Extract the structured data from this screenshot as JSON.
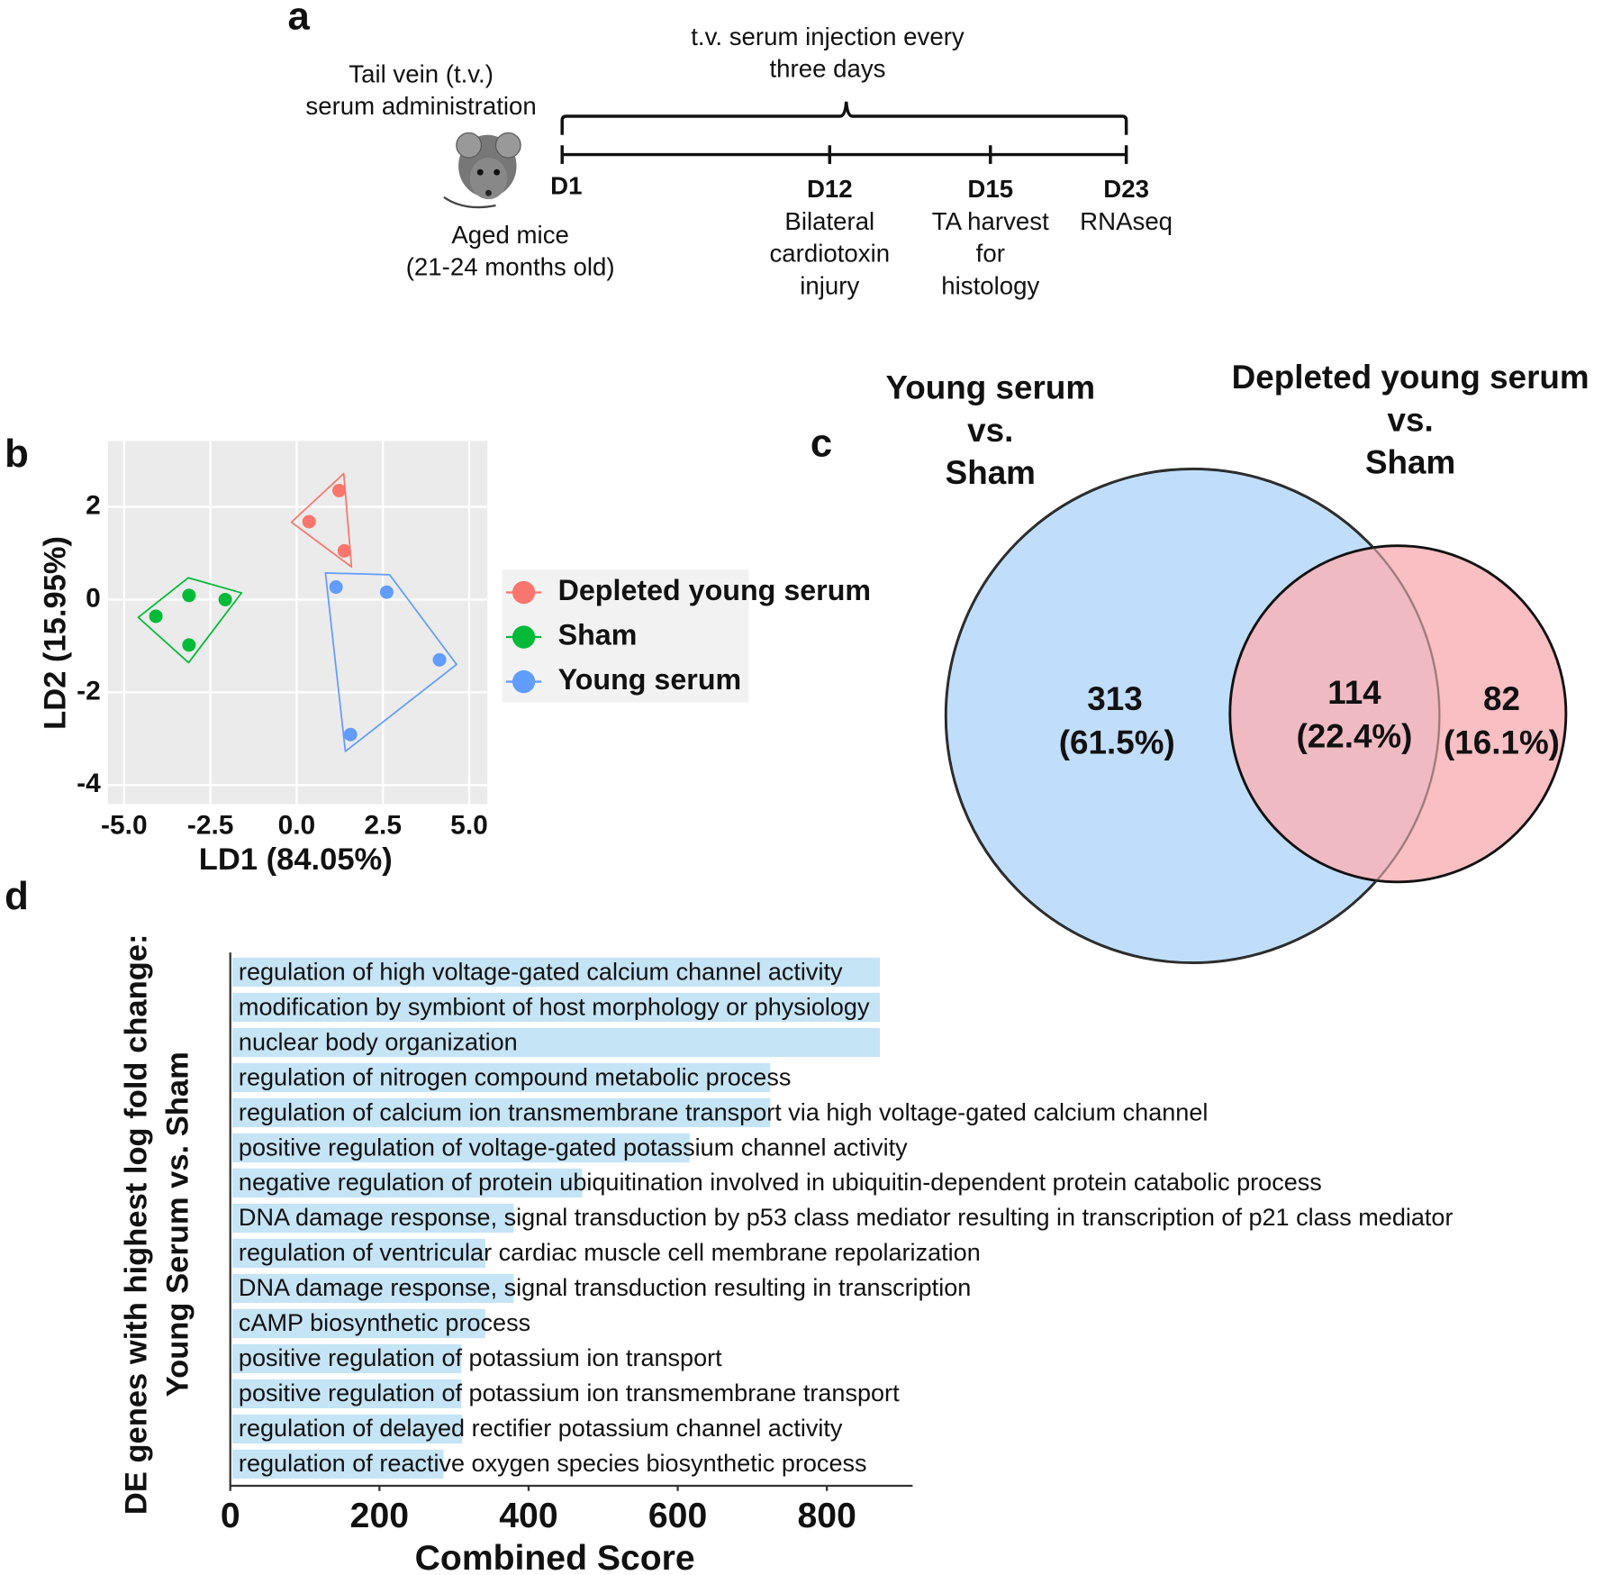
{
  "panel_labels": [
    "a",
    "b",
    "c",
    "d"
  ],
  "timeline": {
    "injection_note": [
      "t.v. serum injection every",
      "three days"
    ],
    "administration": [
      "Tail vein (t.v.)",
      "serum administration"
    ],
    "subject": [
      "Aged mice",
      "(21-24 months old)"
    ],
    "days": [
      {
        "label": "D1",
        "note": []
      },
      {
        "label": "D12",
        "note": [
          "Bilateral",
          "cardiotoxin",
          "injury"
        ]
      },
      {
        "label": "D15",
        "note": [
          "TA harvest",
          "for",
          "histology"
        ]
      },
      {
        "label": "D23",
        "note": [
          "RNAseq"
        ]
      }
    ]
  },
  "chart_data": [
    {
      "type": "scatter",
      "xlabel": "LD1 (84.05%)",
      "ylabel": "LD2 (15.95%)",
      "xlim": [
        -5.47,
        5.53
      ],
      "ylim": [
        -4.41,
        3.42
      ],
      "xticks": [
        {
          "value": -5,
          "label": "-5.0"
        },
        {
          "value": -2.5,
          "label": "-2.5"
        },
        {
          "value": 0,
          "label": "0.0"
        },
        {
          "value": 2.5,
          "label": "2.5"
        },
        {
          "value": 5,
          "label": "5.0"
        }
      ],
      "yticks": [
        -4,
        -2,
        0,
        2
      ],
      "grid": true,
      "legend": "right",
      "series": [
        {
          "name": "Depleted young serum",
          "color": "#f8766d",
          "x": [
            0.36,
            1.23,
            1.38
          ],
          "y": [
            1.68,
            2.35,
            1.05
          ]
        },
        {
          "name": "Sham",
          "color": "#00ba38",
          "x": [
            -4.08,
            -3.12,
            -2.07,
            -3.12
          ],
          "y": [
            -0.36,
            0.09,
            0,
            -0.98
          ]
        },
        {
          "name": "Young serum",
          "color": "#619cff",
          "x": [
            1.14,
            2.61,
            4.14,
            1.56
          ],
          "y": [
            0.27,
            0.16,
            -1.3,
            -2.91
          ]
        }
      ]
    },
    {
      "type": "venn",
      "set_labels": [
        [
          "Young serum",
          "vs.",
          "Sham"
        ],
        [
          "Depleted young serum",
          "vs.",
          "Sham"
        ]
      ],
      "colors": [
        "#c0defb",
        "#f8b4b8"
      ],
      "values": [
        313,
        114,
        82
      ],
      "percent_labels": [
        "(61.5%)",
        "(22.4%)",
        "(16.1%)"
      ]
    },
    {
      "type": "hbar",
      "xlabel": "Combined Score",
      "ylabel": [
        "DE genes with highest log fold change:",
        "Young Serum vs. Sham"
      ],
      "xlim": [
        0,
        915
      ],
      "xticks": [
        0,
        200,
        400,
        600,
        800
      ],
      "color": "#c5e4f6",
      "categories": [
        "regulation of high voltage-gated calcium channel activity",
        "modification by symbiont of host morphology or physiology",
        "nuclear body organization",
        "regulation of nitrogen compound metabolic process",
        "regulation of calcium ion transmembrane transport via high voltage-gated calcium channel",
        "positive regulation of voltage-gated potassium channel activity",
        "negative regulation of protein ubiquitination involved in ubiquitin-dependent protein catabolic process",
        "DNA damage response, signal transduction by p53 class mediator resulting in transcription of p21 class mediator",
        "regulation of ventricular cardiac muscle cell membrane repolarization",
        "DNA damage response, signal transduction resulting in transcription",
        "cAMP biosynthetic process",
        "positive regulation of potassium ion transport",
        "positive regulation of potassium ion transmembrane transport",
        "regulation of delayed rectifier potassium channel activity",
        "regulation of reactive oxygen species biosynthetic process"
      ],
      "values": [
        871,
        871,
        871,
        724,
        724,
        616,
        472,
        380,
        342,
        380,
        342,
        310,
        310,
        311,
        286
      ]
    }
  ]
}
